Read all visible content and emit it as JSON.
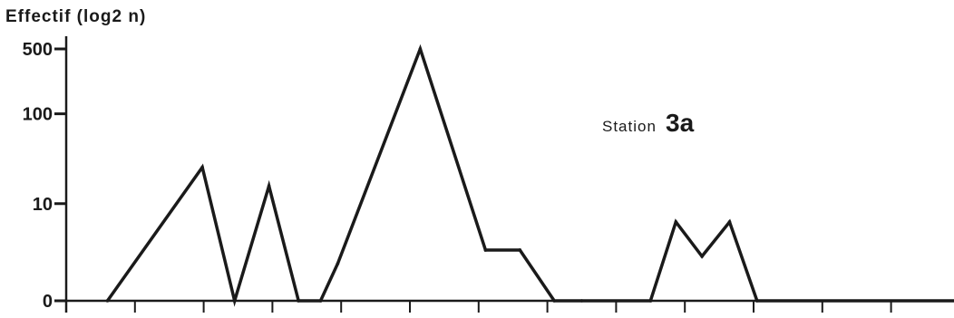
{
  "chart_data": {
    "type": "line",
    "ylabel": "Effectif (log2 n)",
    "yscale": "log2(n+1)",
    "yticks": [
      {
        "value": 0,
        "label": "0"
      },
      {
        "value": 10,
        "label": "10"
      },
      {
        "value": 100,
        "label": "100"
      },
      {
        "value": 500,
        "label": "500"
      }
    ],
    "xlim": [
      0,
      13
    ],
    "xticks": [
      0,
      1,
      2,
      3,
      4,
      5,
      6,
      7,
      8,
      9,
      10,
      11,
      12,
      13
    ],
    "ylim": [
      0,
      500
    ],
    "grid": false,
    "annotation": {
      "text": "Station",
      "id": "3a"
    },
    "series": [
      {
        "x": [
          0.6,
          1.98,
          2.45,
          2.95,
          3.38,
          3.7,
          3.95,
          5.15,
          6.1,
          6.6,
          7.1,
          7.5,
          8.5,
          8.87,
          9.25,
          9.65,
          10.05,
          13
        ],
        "y": [
          0,
          26,
          0,
          16,
          0,
          0,
          1.5,
          500,
          2.5,
          2.5,
          0,
          0,
          0,
          6,
          2,
          6,
          0,
          0
        ]
      }
    ]
  }
}
